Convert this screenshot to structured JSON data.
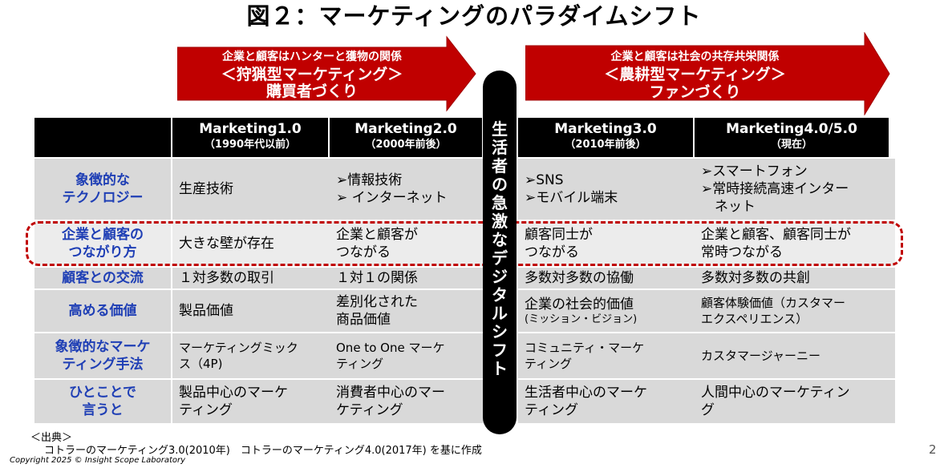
{
  "title": "図２：マーケティングのパラダイムシフト",
  "arrow_left": {
    "line1": "企業と顧客はハンターと獲物の関係",
    "line2": "＜狩猟型マーケティング＞",
    "line3": "購買者づくり"
  },
  "arrow_right": {
    "line1": "企業と顧客は社会の共存共栄関係",
    "line2": "＜農耕型マーケティング＞",
    "line3": "ファンづくり"
  },
  "vertical_bar": {
    "chars": [
      "生",
      "活",
      "者",
      "の",
      "急",
      "激",
      "な",
      "デ",
      "ジ",
      "タ",
      "ル",
      "シ",
      "フ",
      "ト"
    ]
  },
  "columns": [
    {
      "name": "Marketing1.0",
      "period": "（1990年代以前）"
    },
    {
      "name": "Marketing2.0",
      "period": "（2000年前後）"
    },
    {
      "name": "Marketing3.0",
      "period": "（2010年前後）"
    },
    {
      "name": "Marketing4.0/5.0",
      "period": "（現在）"
    }
  ],
  "rows": [
    {
      "label": [
        "象徴的な",
        "テクノロジー"
      ],
      "cells": [
        [
          "生産技術"
        ],
        [
          "➢情報技術",
          "➢ インターネット"
        ],
        [
          "➢SNS",
          "➢モバイル端末"
        ],
        [
          "➢スマートフォン",
          "➢常時接続高速インター",
          "　ネット"
        ]
      ]
    },
    {
      "label": [
        "企業と顧客の",
        "つながり方"
      ],
      "cells": [
        [
          "大きな壁が存在"
        ],
        [
          "企業と顧客が",
          "つながる"
        ],
        [
          "顧客同士が",
          "つながる"
        ],
        [
          "企業と顧客、顧客同士が",
          "常時つながる"
        ]
      ]
    },
    {
      "label": [
        "顧客との交流"
      ],
      "cells": [
        [
          "１対多数の取引"
        ],
        [
          "１対１の関係"
        ],
        [
          "多数対多数の協働"
        ],
        [
          "多数対多数の共創"
        ]
      ]
    },
    {
      "label": [
        "高める価値"
      ],
      "cells": [
        [
          "製品価値"
        ],
        [
          "差別化された",
          "商品価値"
        ],
        [
          "企業の社会的価値",
          "(ミッション・ビジョン)"
        ],
        [
          "顧客体験価値（カスタマー",
          "エクスペリエンス）"
        ]
      ]
    },
    {
      "label": [
        "象徴的なマーケ",
        "ティング手法"
      ],
      "cells": [
        [
          "マーケティングミック",
          "ス（4P)"
        ],
        [
          "One to One マーケ",
          "ティング"
        ],
        [
          "コミュニティ・マーケ",
          "ティング"
        ],
        [
          "カスタマージャーニー"
        ]
      ]
    },
    {
      "label": [
        "ひとことで",
        "言うと"
      ],
      "cells": [
        [
          "製品中心のマーケ",
          "ティング"
        ],
        [
          "消費者中心のマー",
          "ケティング"
        ],
        [
          "生活者中心のマーケ",
          "ティング"
        ],
        [
          "人間中心のマーケティン",
          "グ"
        ]
      ]
    }
  ],
  "source": {
    "heading": "＜出典＞",
    "text": "コトラーのマーケティング3.0(2010年)　コトラーのマーケティング4.0(2017年) を基に作成"
  },
  "copyright": "Copyright 2025 © Insight Scope Laboratory",
  "page_number": "2",
  "colors": {
    "arrow_red": "#c00000",
    "header_black": "#000000",
    "cell_gray": "#d9d9d9",
    "label_blue": "#1f3fb5",
    "dashed_highlight": "#c00000"
  }
}
